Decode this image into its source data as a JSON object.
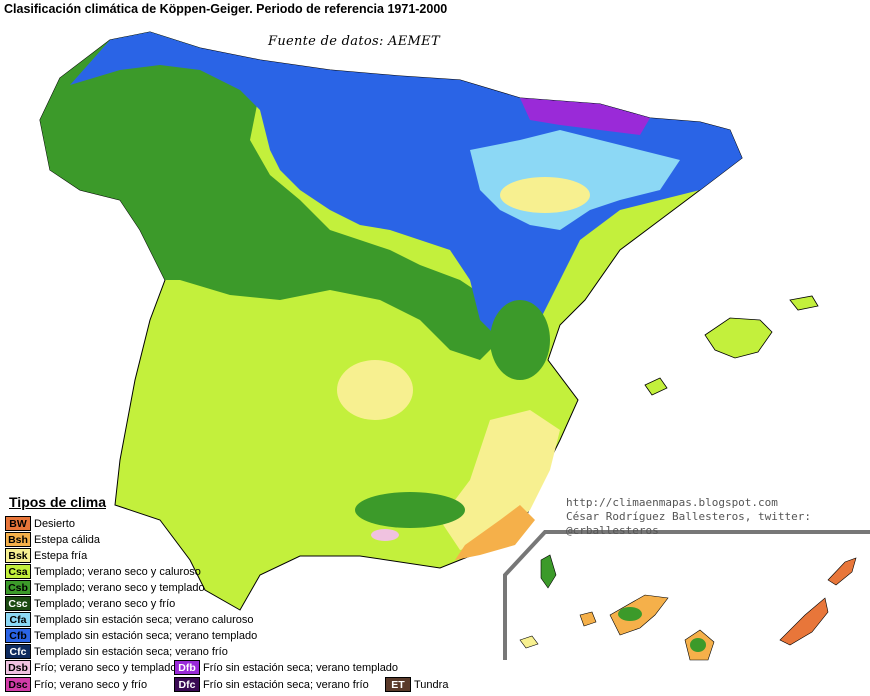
{
  "title": "Clasificación climática de Köppen-Geiger. Periodo de referencia 1971-2000",
  "source": "Fuente de datos: AEMET",
  "credits": {
    "url": "http://climaenmapas.blogspot.com",
    "author": "César Rodríguez Ballesteros, twitter: @crballesteros"
  },
  "legend": {
    "title": "Tipos de clima",
    "items": [
      {
        "code": "BW",
        "label": "Desierto",
        "color": "#e8763a",
        "text_color": "#000000"
      },
      {
        "code": "Bsh",
        "label": "Estepa cálida",
        "color": "#f5b04a",
        "text_color": "#000000"
      },
      {
        "code": "Bsk",
        "label": "Estepa fría",
        "color": "#f7f090",
        "text_color": "#000000"
      },
      {
        "code": "Csa",
        "label": "Templado; verano seco y caluroso",
        "color": "#c3f03c",
        "text_color": "#000000"
      },
      {
        "code": "Csb",
        "label": "Templado; verano seco y templado",
        "color": "#3c9a2a",
        "text_color": "#000000"
      },
      {
        "code": "Csc",
        "label": "Templado; verano seco y frío",
        "color": "#1c4a12",
        "text_color": "#ffffff"
      },
      {
        "code": "Cfa",
        "label": "Templado sin estación seca; verano caluroso",
        "color": "#8cd8f5",
        "text_color": "#000000"
      },
      {
        "code": "Cfb",
        "label": "Templado sin estación seca; verano templado",
        "color": "#2a64e6",
        "text_color": "#000000"
      },
      {
        "code": "Cfc",
        "label": "Templado sin estación seca; verano frío",
        "color": "#0d2a5e",
        "text_color": "#ffffff"
      },
      {
        "code": "Dsb",
        "label": "Frío; verano seco y templado",
        "color": "#f0c2e0",
        "text_color": "#000000"
      },
      {
        "code": "Dsc",
        "label": "Frío; verano seco y frío",
        "color": "#d23ca8",
        "text_color": "#000000"
      },
      {
        "code": "Dfb",
        "label": "Frío sin estación seca; verano templado",
        "color": "#9a2ad8",
        "text_color": "#ffffff"
      },
      {
        "code": "Dfc",
        "label": "Frío sin estación seca; verano frío",
        "color": "#3a0a54",
        "text_color": "#ffffff"
      },
      {
        "code": "ET",
        "label": "Tundra",
        "color": "#5a3a2a",
        "text_color": "#ffffff"
      }
    ]
  }
}
